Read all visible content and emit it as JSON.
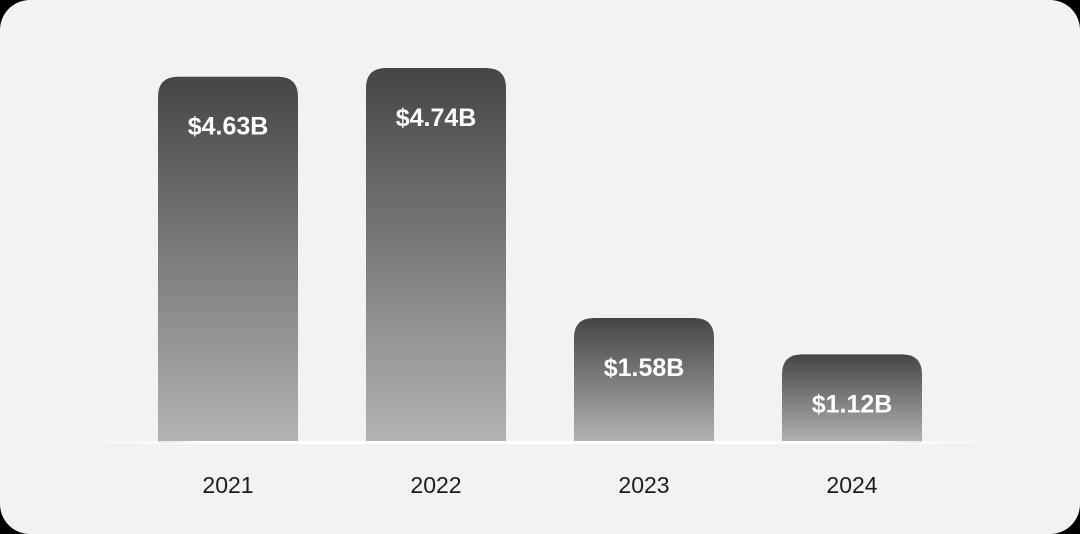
{
  "chart_data": {
    "type": "bar",
    "categories": [
      "2021",
      "2022",
      "2023",
      "2024"
    ],
    "values": [
      4.63,
      4.74,
      1.58,
      1.12
    ],
    "value_labels": [
      "$4.63B",
      "$4.74B",
      "$1.58B",
      "$1.12B"
    ],
    "title": "",
    "xlabel": "",
    "ylabel": "",
    "ylim": [
      0,
      4.74
    ],
    "grid": false,
    "legend": "none"
  },
  "colors": {
    "background": "#f2f2f2",
    "bar_top": "#454545",
    "bar_bottom": "#b4b4b4",
    "bar_label": "#ffffff",
    "tick_label": "#1c1c1c"
  }
}
